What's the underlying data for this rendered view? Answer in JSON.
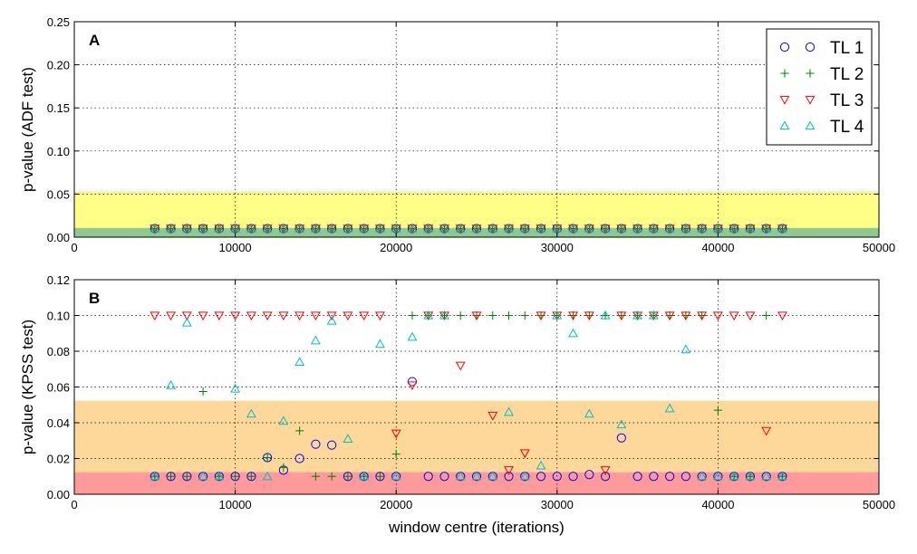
{
  "chart_data": [
    {
      "type": "scatter",
      "panel_label": "A",
      "xlabel": "",
      "ylabel": "p-value (ADF test)",
      "xlim": [
        0,
        50000
      ],
      "ylim": [
        0,
        0.25
      ],
      "x_ticks": [
        "0",
        "10000",
        "20000",
        "30000",
        "40000",
        "50000"
      ],
      "y_ticks": [
        "0.00",
        "0.05",
        "0.10",
        "0.15",
        "0.20",
        "0.25"
      ],
      "grid": true,
      "legend_position": "top-right",
      "bands": [
        {
          "from": 0.05,
          "to": 0.0525,
          "color": "#f2f2a0"
        },
        {
          "from": 0.01,
          "to": 0.05,
          "color": "#ffff88"
        },
        {
          "from": 0.0,
          "to": 0.01,
          "color": "#8fc98f"
        }
      ],
      "series": [
        {
          "name": "TL 1",
          "marker": "circle",
          "color": "#0000ff",
          "x": [
            5000,
            6000,
            7000,
            8000,
            9000,
            10000,
            11000,
            12000,
            13000,
            14000,
            15000,
            16000,
            17000,
            18000,
            19000,
            20000,
            21000,
            22000,
            23000,
            24000,
            25000,
            26000,
            27000,
            28000,
            29000,
            30000,
            31000,
            32000,
            33000,
            34000,
            35000,
            36000,
            37000,
            38000,
            39000,
            40000,
            41000,
            42000,
            43000,
            44000
          ],
          "y": [
            0.01,
            0.01,
            0.01,
            0.01,
            0.01,
            0.01,
            0.01,
            0.01,
            0.01,
            0.01,
            0.01,
            0.01,
            0.01,
            0.01,
            0.01,
            0.01,
            0.01,
            0.01,
            0.01,
            0.01,
            0.01,
            0.01,
            0.01,
            0.01,
            0.01,
            0.01,
            0.01,
            0.01,
            0.01,
            0.01,
            0.01,
            0.01,
            0.01,
            0.01,
            0.01,
            0.01,
            0.01,
            0.01,
            0.01,
            0.01
          ]
        },
        {
          "name": "TL 2",
          "marker": "plus",
          "color": "#008000",
          "x": [
            5000,
            6000,
            7000,
            8000,
            9000,
            10000,
            11000,
            12000,
            13000,
            14000,
            15000,
            16000,
            17000,
            18000,
            19000,
            20000,
            21000,
            22000,
            23000,
            24000,
            25000,
            26000,
            27000,
            28000,
            29000,
            30000,
            31000,
            32000,
            33000,
            34000,
            35000,
            36000,
            37000,
            38000,
            39000,
            40000,
            41000,
            42000,
            43000,
            44000
          ],
          "y": [
            0.01,
            0.01,
            0.01,
            0.01,
            0.01,
            0.01,
            0.01,
            0.01,
            0.01,
            0.01,
            0.01,
            0.01,
            0.01,
            0.01,
            0.01,
            0.01,
            0.01,
            0.01,
            0.01,
            0.01,
            0.01,
            0.01,
            0.01,
            0.01,
            0.01,
            0.01,
            0.01,
            0.01,
            0.01,
            0.01,
            0.01,
            0.01,
            0.01,
            0.01,
            0.01,
            0.01,
            0.01,
            0.01,
            0.01,
            0.01
          ]
        },
        {
          "name": "TL 3",
          "marker": "triangle-down",
          "color": "#ff0000",
          "x": [
            5000,
            6000,
            7000,
            8000,
            9000,
            10000,
            11000,
            12000,
            13000,
            14000,
            15000,
            16000,
            17000,
            18000,
            19000,
            20000,
            21000,
            22000,
            23000,
            24000,
            25000,
            26000,
            27000,
            28000,
            29000,
            30000,
            31000,
            32000,
            33000,
            34000,
            35000,
            36000,
            37000,
            38000,
            39000,
            40000,
            41000,
            42000,
            43000,
            44000
          ],
          "y": [
            0.01,
            0.01,
            0.01,
            0.01,
            0.01,
            0.01,
            0.01,
            0.01,
            0.01,
            0.01,
            0.01,
            0.01,
            0.01,
            0.01,
            0.01,
            0.01,
            0.01,
            0.01,
            0.01,
            0.01,
            0.01,
            0.01,
            0.01,
            0.01,
            0.01,
            0.01,
            0.01,
            0.01,
            0.01,
            0.01,
            0.01,
            0.01,
            0.01,
            0.01,
            0.01,
            0.01,
            0.01,
            0.01,
            0.01,
            0.01
          ]
        },
        {
          "name": "TL 4",
          "marker": "triangle-up",
          "color": "#00bfbf",
          "x": [
            5000,
            6000,
            7000,
            8000,
            9000,
            10000,
            11000,
            12000,
            13000,
            14000,
            15000,
            16000,
            17000,
            18000,
            19000,
            20000,
            21000,
            22000,
            23000,
            24000,
            25000,
            26000,
            27000,
            28000,
            29000,
            30000,
            31000,
            32000,
            33000,
            34000,
            35000,
            36000,
            37000,
            38000,
            39000,
            40000,
            41000,
            42000,
            43000,
            44000
          ],
          "y": [
            0.01,
            0.01,
            0.01,
            0.01,
            0.01,
            0.01,
            0.01,
            0.01,
            0.01,
            0.01,
            0.01,
            0.01,
            0.01,
            0.01,
            0.01,
            0.01,
            0.01,
            0.01,
            0.01,
            0.01,
            0.01,
            0.01,
            0.01,
            0.01,
            0.01,
            0.01,
            0.01,
            0.01,
            0.01,
            0.01,
            0.01,
            0.01,
            0.01,
            0.01,
            0.01,
            0.01,
            0.01,
            0.01,
            0.01,
            0.01
          ]
        }
      ]
    },
    {
      "type": "scatter",
      "panel_label": "B",
      "xlabel": "window centre (iterations)",
      "ylabel": "p-value (KPSS test)",
      "xlim": [
        0,
        50000
      ],
      "ylim": [
        0,
        0.12
      ],
      "x_ticks": [
        "0",
        "10000",
        "20000",
        "30000",
        "40000",
        "50000"
      ],
      "y_ticks": [
        "0.00",
        "0.02",
        "0.04",
        "0.06",
        "0.08",
        "0.10",
        "0.12"
      ],
      "grid": true,
      "bands": [
        {
          "from": 0.012,
          "to": 0.052,
          "color": "#fdd89a"
        },
        {
          "from": 0.0,
          "to": 0.012,
          "color": "#ff9a9a"
        }
      ],
      "series": [
        {
          "name": "TL 1",
          "marker": "circle",
          "color": "#0000ff",
          "x": [
            5000,
            6000,
            7000,
            8000,
            9000,
            10000,
            11000,
            12000,
            13000,
            14000,
            15000,
            16000,
            17000,
            18000,
            19000,
            20000,
            21000,
            22000,
            23000,
            24000,
            25000,
            26000,
            27000,
            28000,
            29000,
            30000,
            31000,
            32000,
            33000,
            34000,
            35000,
            36000,
            37000,
            38000,
            39000,
            40000,
            41000,
            42000,
            43000,
            44000
          ],
          "y": [
            0.01,
            0.01,
            0.01,
            0.01,
            0.01,
            0.01,
            0.01,
            0.0205,
            0.0135,
            0.02,
            0.028,
            0.0275,
            0.01,
            0.01,
            0.01,
            0.01,
            0.063,
            0.01,
            0.01,
            0.01,
            0.01,
            0.01,
            0.01,
            0.01,
            0.01,
            0.01,
            0.01,
            0.011,
            0.01,
            0.0315,
            0.01,
            0.01,
            0.01,
            0.01,
            0.01,
            0.01,
            0.01,
            0.01,
            0.01,
            0.01
          ]
        },
        {
          "name": "TL 2",
          "marker": "plus",
          "color": "#008000",
          "x": [
            5000,
            6000,
            7000,
            8000,
            9000,
            10000,
            11000,
            12000,
            13000,
            14000,
            15000,
            16000,
            17000,
            18000,
            19000,
            20000,
            21000,
            22000,
            23000,
            24000,
            25000,
            26000,
            27000,
            28000,
            29000,
            30000,
            31000,
            32000,
            33000,
            34000,
            35000,
            36000,
            37000,
            38000,
            39000,
            40000,
            41000,
            42000,
            43000,
            44000
          ],
          "y": [
            0.01,
            0.01,
            0.01,
            0.0575,
            0.01,
            0.01,
            0.01,
            0.0205,
            0.015,
            0.0355,
            0.01,
            0.01,
            0.01,
            0.01,
            0.01,
            0.0225,
            0.1,
            0.1,
            0.1,
            0.1,
            0.1,
            0.1,
            0.1,
            0.1,
            0.1,
            0.1,
            0.1,
            0.1,
            0.1,
            0.1,
            0.1,
            0.1,
            0.1,
            0.1,
            0.1,
            0.047,
            0.01,
            0.01,
            0.1,
            0.01
          ]
        },
        {
          "name": "TL 3",
          "marker": "triangle-down",
          "color": "#ff0000",
          "x": [
            5000,
            6000,
            7000,
            8000,
            9000,
            10000,
            11000,
            12000,
            13000,
            14000,
            15000,
            16000,
            17000,
            18000,
            19000,
            20000,
            21000,
            22000,
            23000,
            24000,
            25000,
            26000,
            27000,
            28000,
            29000,
            30000,
            31000,
            32000,
            33000,
            34000,
            35000,
            36000,
            37000,
            38000,
            39000,
            40000,
            41000,
            42000,
            43000,
            44000
          ],
          "y": [
            0.1,
            0.1,
            0.1,
            0.1,
            0.1,
            0.1,
            0.1,
            0.1,
            0.1,
            0.1,
            0.1,
            0.1,
            0.1,
            0.1,
            0.1,
            0.034,
            0.061,
            0.1,
            0.1,
            0.072,
            0.1,
            0.044,
            0.0135,
            0.023,
            0.1,
            0.1,
            0.1,
            0.1,
            0.0135,
            0.1,
            0.1,
            0.1,
            0.1,
            0.1,
            0.1,
            0.1,
            0.1,
            0.1,
            0.0355,
            0.1
          ]
        },
        {
          "name": "TL 4",
          "marker": "triangle-up",
          "color": "#00bfbf",
          "x": [
            5000,
            6000,
            7000,
            8000,
            9000,
            10000,
            11000,
            12000,
            13000,
            14000,
            15000,
            16000,
            17000,
            18000,
            19000,
            20000,
            21000,
            22000,
            23000,
            24000,
            25000,
            26000,
            27000,
            28000,
            29000,
            30000,
            31000,
            32000,
            33000,
            34000,
            35000,
            36000,
            37000,
            38000,
            39000,
            40000,
            41000,
            42000,
            43000,
            44000
          ],
          "y": [
            0.01,
            0.061,
            0.096,
            0.01,
            0.01,
            0.059,
            0.045,
            0.01,
            0.041,
            0.074,
            0.086,
            0.097,
            0.031,
            0.01,
            0.084,
            0.01,
            0.088,
            0.1,
            0.1,
            0.01,
            0.01,
            0.01,
            0.046,
            0.01,
            0.016,
            0.1,
            0.09,
            0.045,
            0.1,
            0.039,
            0.1,
            0.1,
            0.048,
            0.081,
            0.01,
            0.01,
            0.01,
            0.01,
            0.01,
            0.01
          ]
        }
      ]
    }
  ]
}
